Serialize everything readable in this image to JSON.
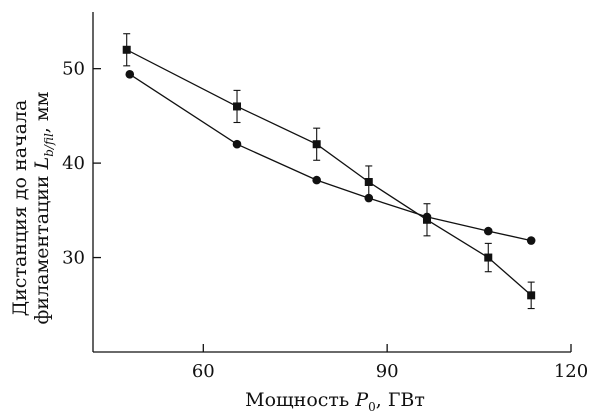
{
  "chart_data": {
    "type": "line",
    "xlabel": {
      "prefix": "Мощность ",
      "var": "P",
      "sub": "0",
      "suffix": ", ГВт"
    },
    "ylabel": {
      "line1": "Дистанция до начала",
      "line2_prefix": "филаментации ",
      "var": "L",
      "sub": "b/fil",
      "line2_suffix": ", мм"
    },
    "xlim": [
      42,
      120
    ],
    "ylim": [
      20,
      56
    ],
    "xticks": [
      60,
      90,
      120
    ],
    "yticks": [
      30,
      40,
      50
    ],
    "grid": false,
    "series": [
      {
        "marker": "square",
        "color": "#111111",
        "points": [
          {
            "x": 47.5,
            "y": 52.0,
            "err": 1.7
          },
          {
            "x": 65.5,
            "y": 46.0,
            "err": 1.7
          },
          {
            "x": 78.5,
            "y": 42.0,
            "err": 1.7
          },
          {
            "x": 87.0,
            "y": 38.0,
            "err": 1.7
          },
          {
            "x": 96.5,
            "y": 34.0,
            "err": 1.7
          },
          {
            "x": 106.5,
            "y": 30.0,
            "err": 1.5
          },
          {
            "x": 113.5,
            "y": 26.0,
            "err": 1.4
          }
        ]
      },
      {
        "marker": "circle",
        "color": "#111111",
        "points": [
          {
            "x": 48.0,
            "y": 49.4
          },
          {
            "x": 65.5,
            "y": 42.0
          },
          {
            "x": 78.5,
            "y": 38.2
          },
          {
            "x": 87.0,
            "y": 36.3
          },
          {
            "x": 96.5,
            "y": 34.3
          },
          {
            "x": 106.5,
            "y": 32.8
          },
          {
            "x": 113.5,
            "y": 31.8
          }
        ]
      }
    ]
  }
}
